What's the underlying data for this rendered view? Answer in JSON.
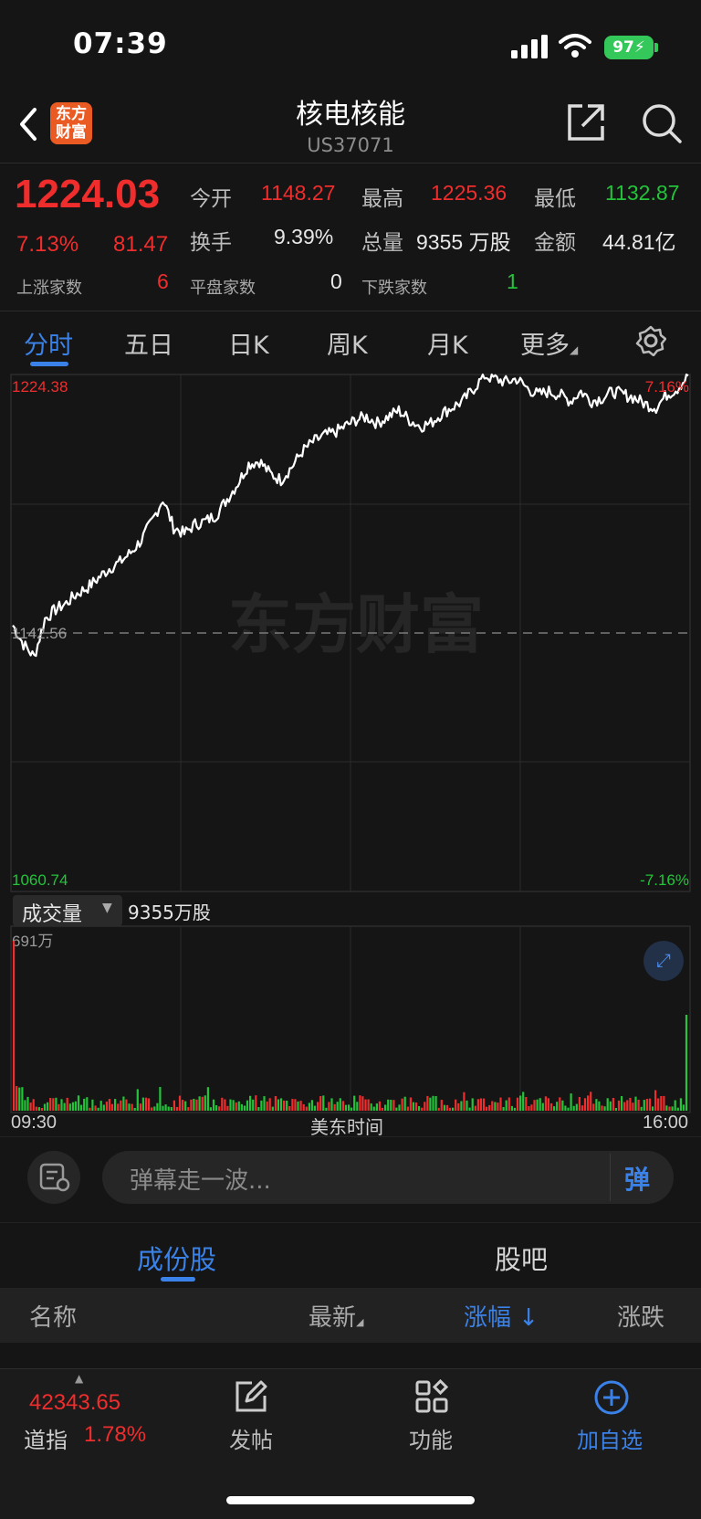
{
  "status_bar": {
    "time": "07:39",
    "battery": "97"
  },
  "header": {
    "back_icon": "chevron-left-icon",
    "logo_line1": "东方",
    "logo_line2": "财富",
    "title": "核电核能",
    "code": "US37071",
    "share_icon": "share-icon",
    "search_icon": "search-icon"
  },
  "quote": {
    "price": "1224.03",
    "change_pct": "7.13%",
    "change": "81.47",
    "open_label": "今开",
    "open": "1148.27",
    "high_label": "最高",
    "high": "1225.36",
    "low_label": "最低",
    "low": "1132.87",
    "turnover_label": "换手",
    "turnover": "9.39%",
    "volume_label": "总量",
    "volume": "9355",
    "volume_unit": "万股",
    "amount_label": "金额",
    "amount": "44.81亿",
    "up_label": "上涨家数",
    "up": "6",
    "flat_label": "平盘家数",
    "flat": "0",
    "down_label": "下跌家数",
    "down": "1"
  },
  "tabs": [
    "分时",
    "五日",
    "日K",
    "周K",
    "月K",
    "更多"
  ],
  "chart_data": {
    "type": "line",
    "ymax": 1224.38,
    "ymin": 1060.74,
    "prev_close": 1142.56,
    "ymax_pct": "7.16%",
    "ymin_pct": "-7.16%",
    "ymax_label": "1224.38",
    "ymin_label": "1060.74",
    "prev_close_label": "1142.56",
    "x_start": "09:30",
    "x_mid": "美东时间",
    "x_end": "16:00",
    "watermark": "东方财富",
    "price_series": [
      1145,
      1139,
      1135,
      1147,
      1150,
      1152,
      1155,
      1157,
      1160,
      1163,
      1165,
      1168,
      1172,
      1178,
      1185,
      1176,
      1174,
      1177,
      1178,
      1180,
      1185,
      1190,
      1196,
      1197,
      1193,
      1191,
      1195,
      1200,
      1203,
      1205,
      1206,
      1208,
      1210,
      1211,
      1209,
      1211,
      1213,
      1210,
      1208,
      1209,
      1212,
      1214,
      1216,
      1220,
      1224,
      1223,
      1222,
      1223,
      1220,
      1218,
      1219,
      1218,
      1216,
      1219,
      1216,
      1217,
      1219,
      1218,
      1217,
      1215,
      1214,
      1218,
      1220,
      1224
    ],
    "volume_max_label": "691万",
    "volume_label": "成交量",
    "volume_total": "9355",
    "volume_unit": "万股"
  },
  "danmaku": {
    "placeholder": "弹幕走一波...",
    "button": "弹"
  },
  "constituents": {
    "tabs": [
      "成份股",
      "股吧"
    ],
    "columns": {
      "name": "名称",
      "latest": "最新",
      "change_pct": "涨幅",
      "change": "涨跌"
    }
  },
  "bottom_nav": {
    "index_value": "42343.65",
    "index_name": "道指",
    "index_change": "1.78%",
    "items": [
      "发帖",
      "功能",
      "加自选"
    ]
  },
  "colors": {
    "up": "#f02d2d",
    "down": "#23c43a",
    "accent": "#3b82e8",
    "logo": "#ea5b23"
  }
}
